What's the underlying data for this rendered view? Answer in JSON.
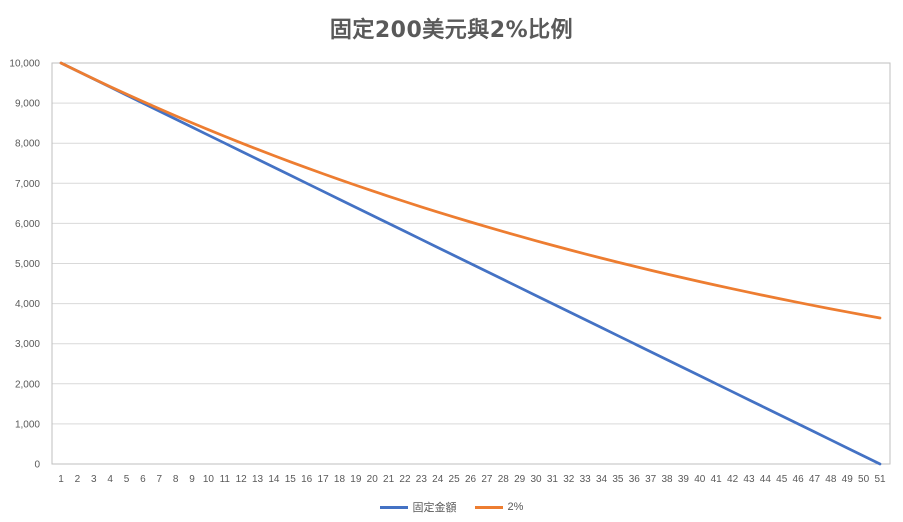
{
  "chart_data": {
    "type": "line",
    "title": "固定200美元與2%比例",
    "xlabel": "",
    "ylabel": "",
    "x": [
      1,
      2,
      3,
      4,
      5,
      6,
      7,
      8,
      9,
      10,
      11,
      12,
      13,
      14,
      15,
      16,
      17,
      18,
      19,
      20,
      21,
      22,
      23,
      24,
      25,
      26,
      27,
      28,
      29,
      30,
      31,
      32,
      33,
      34,
      35,
      36,
      37,
      38,
      39,
      40,
      41,
      42,
      43,
      44,
      45,
      46,
      47,
      48,
      49,
      50,
      51
    ],
    "ylim": [
      0,
      10000
    ],
    "yticks": [
      "0",
      "1,000",
      "2,000",
      "3,000",
      "4,000",
      "5,000",
      "6,000",
      "7,000",
      "8,000",
      "9,000",
      "10,000"
    ],
    "ytick_values": [
      0,
      1000,
      2000,
      3000,
      4000,
      5000,
      6000,
      7000,
      8000,
      9000,
      10000
    ],
    "grid": true,
    "legend_position": "bottom",
    "series": [
      {
        "name": "固定金額",
        "color": "#4472C4",
        "values": [
          10000,
          9800,
          9600,
          9400,
          9200,
          9000,
          8800,
          8600,
          8400,
          8200,
          8000,
          7800,
          7600,
          7400,
          7200,
          7000,
          6800,
          6600,
          6400,
          6200,
          6000,
          5800,
          5600,
          5400,
          5200,
          5000,
          4800,
          4600,
          4400,
          4200,
          4000,
          3800,
          3600,
          3400,
          3200,
          3000,
          2800,
          2600,
          2400,
          2200,
          2000,
          1800,
          1600,
          1400,
          1200,
          1000,
          800,
          600,
          400,
          200,
          0
        ]
      },
      {
        "name": "2%",
        "color": "#ED7D31",
        "values": [
          10000,
          9800,
          9604,
          9412,
          9224,
          9039,
          8858,
          8681,
          8508,
          8337,
          8171,
          8007,
          7847,
          7690,
          7536,
          7386,
          7238,
          7093,
          6951,
          6812,
          6676,
          6543,
          6412,
          6283,
          6158,
          6035,
          5914,
          5796,
          5680,
          5566,
          5455,
          5346,
          5239,
          5134,
          5031,
          4931,
          4832,
          4735,
          4641,
          4548,
          4457,
          4368,
          4281,
          4195,
          4111,
          4029,
          3948,
          3869,
          3792,
          3716,
          3642
        ]
      }
    ]
  }
}
